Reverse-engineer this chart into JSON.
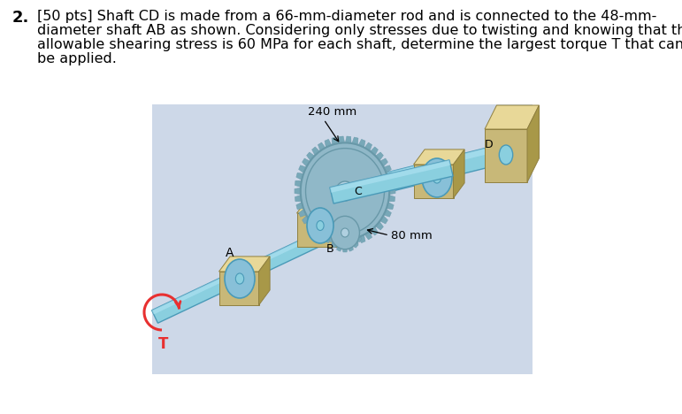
{
  "background_color": "#ffffff",
  "fig_width": 7.71,
  "fig_height": 4.68,
  "dpi": 100,
  "problem_number": "2.",
  "problem_text_lines": [
    "[50 pts] Shaft CD is made from a 66-mm-diameter rod and is connected to the 48-mm-",
    "diameter shaft AB as shown. Considering only stresses due to twisting and knowing that the",
    "allowable shearing stress is 60 MPa for each shaft, determine the largest torque T that can",
    "be applied."
  ],
  "diagram_bg": "#cdd8e8",
  "label_240mm": "240 mm",
  "label_80mm": "80 mm",
  "label_A": "A",
  "label_B": "B",
  "label_C": "C",
  "label_D": "D",
  "label_T": "T",
  "shaft_color": "#8acfdf",
  "shaft_dark": "#4a9ab8",
  "shaft_highlight": "#b8e8f8",
  "bearing_front": "#c8b878",
  "bearing_top": "#e8d898",
  "bearing_side": "#a89848",
  "bearing_ring_color": "#88c0d8",
  "gear_face": "#90b8c8",
  "gear_rim": "#6898a8",
  "gear_tooth": "#78a8b8",
  "gear_hub": "#b0d0e0",
  "torque_color": "#e83030"
}
